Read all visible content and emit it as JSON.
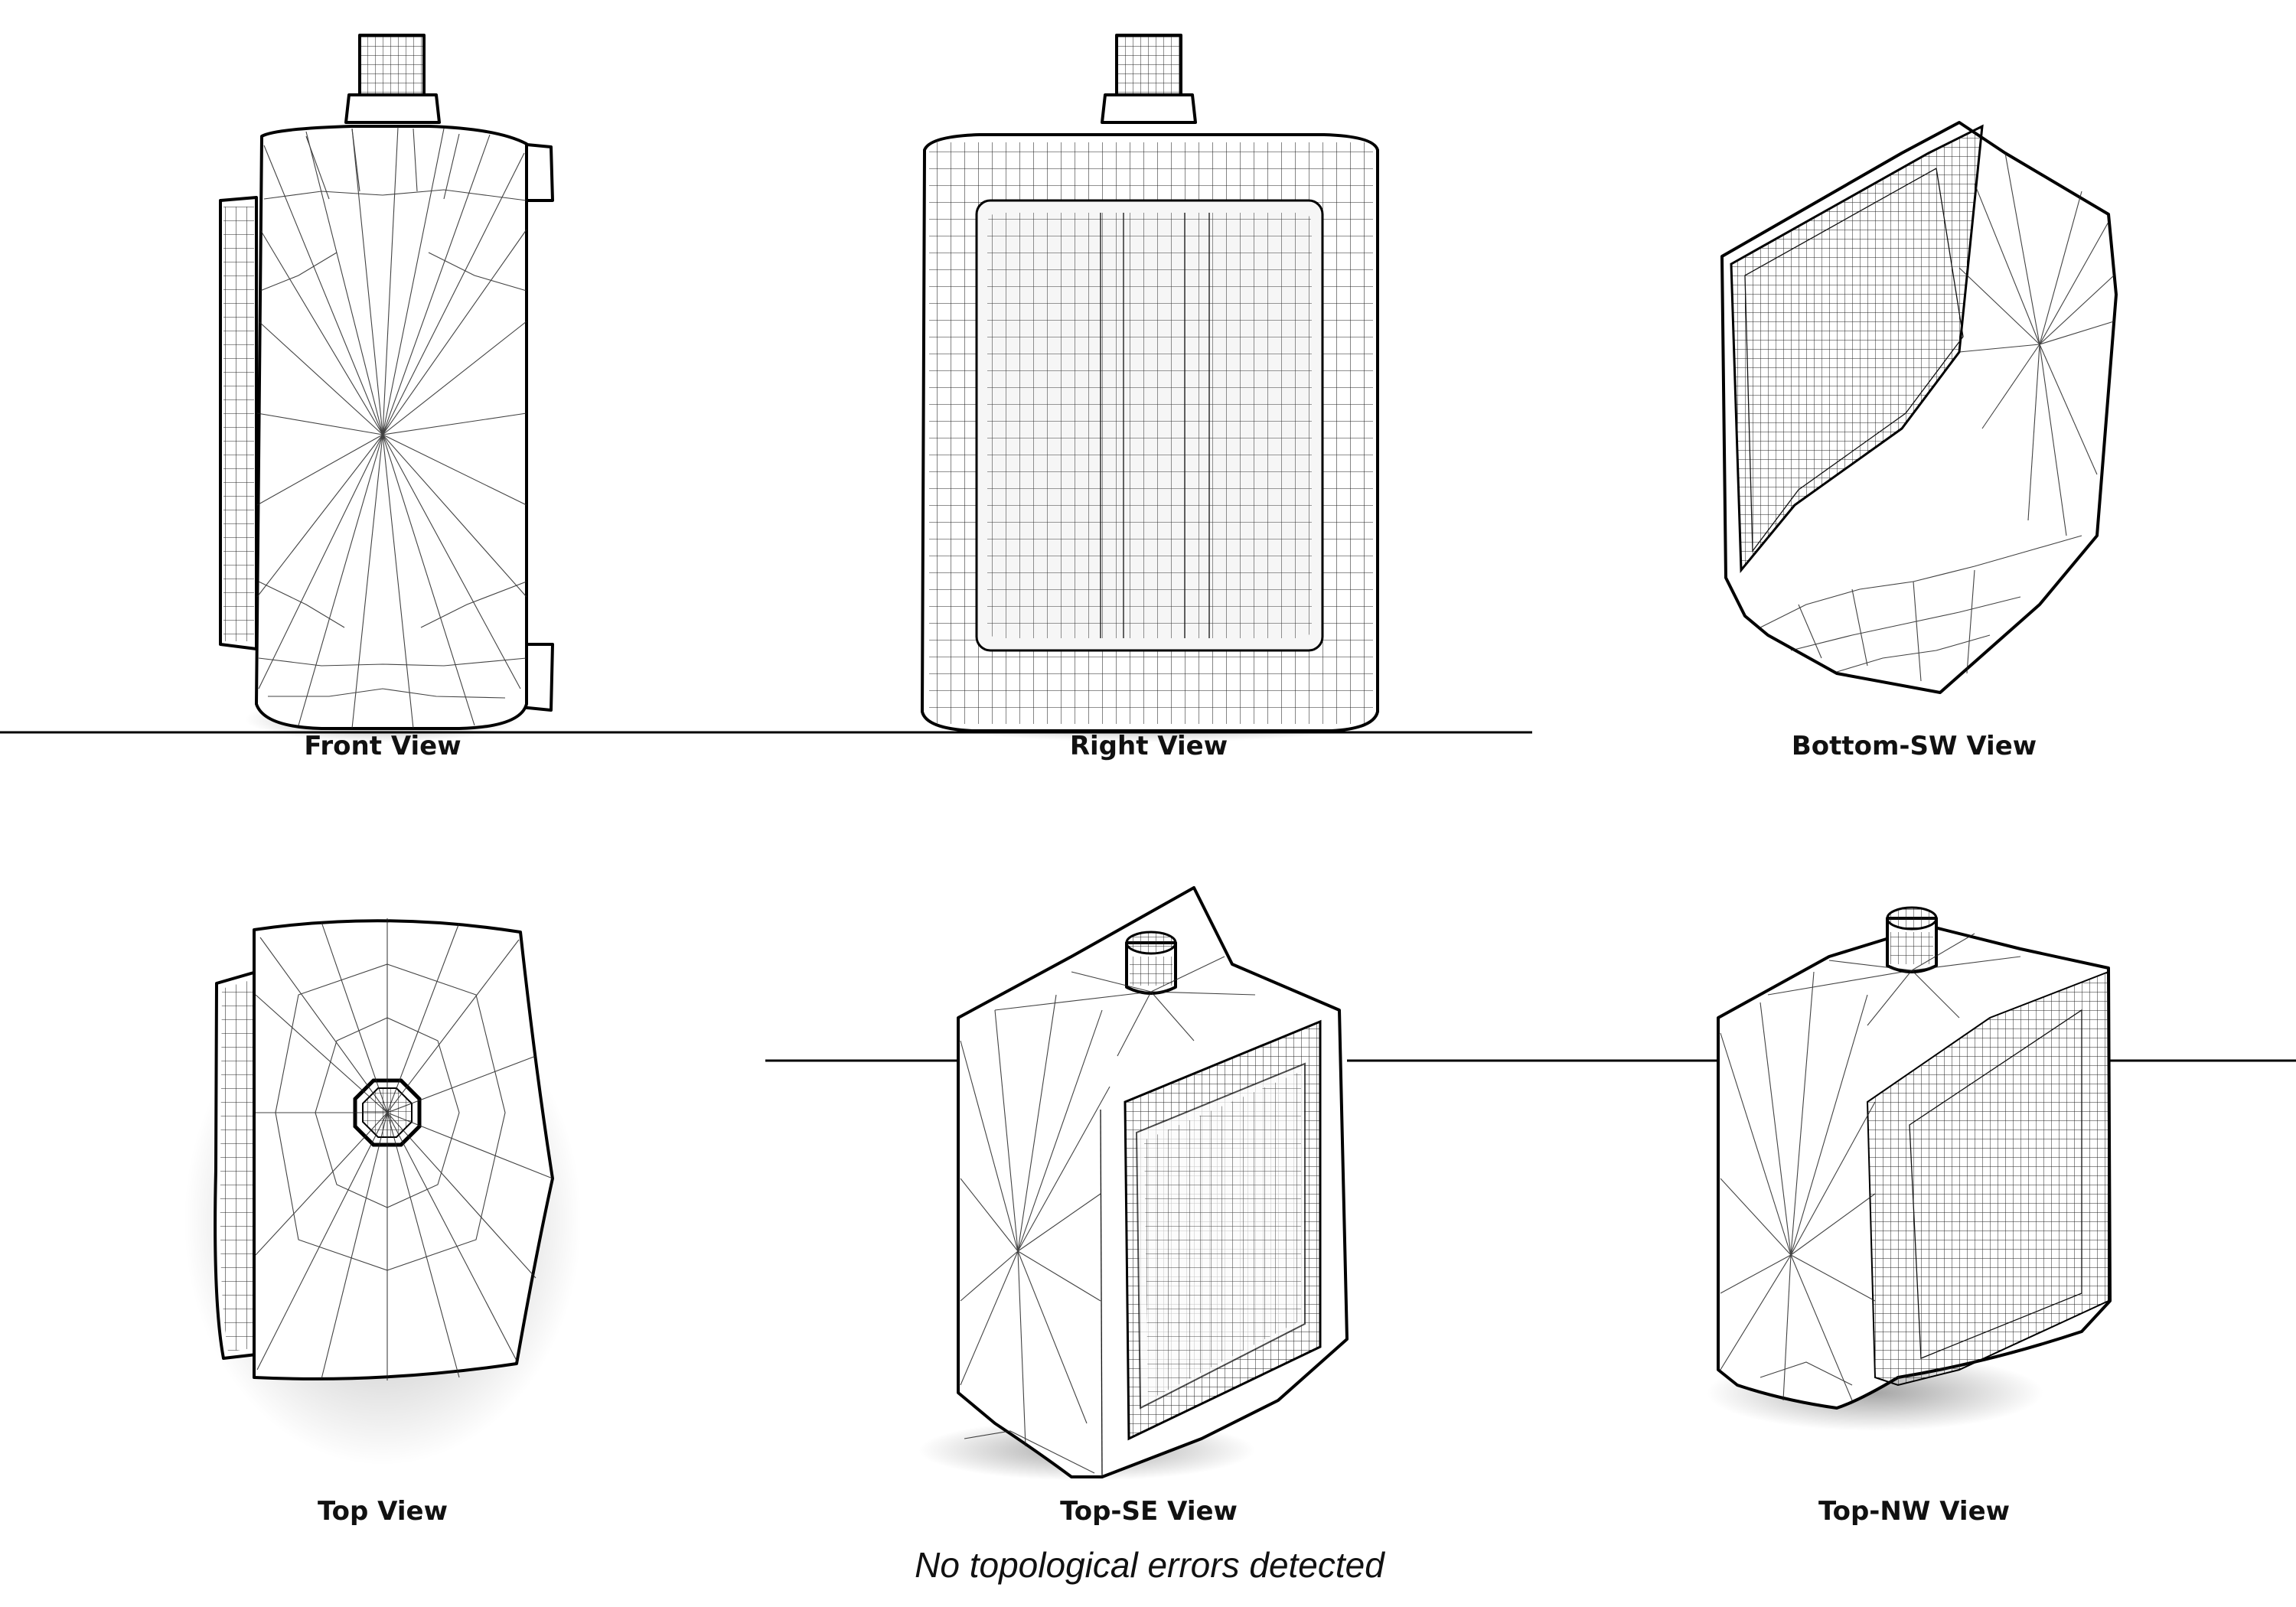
{
  "views": [
    {
      "id": "front",
      "label": "Front View"
    },
    {
      "id": "right",
      "label": "Right View"
    },
    {
      "id": "bottom_sw",
      "label": "Bottom-SW View"
    },
    {
      "id": "top",
      "label": "Top View"
    },
    {
      "id": "top_se",
      "label": "Top-SE View"
    },
    {
      "id": "top_nw",
      "label": "Top-NW View"
    }
  ],
  "status_message": "No topological errors detected"
}
